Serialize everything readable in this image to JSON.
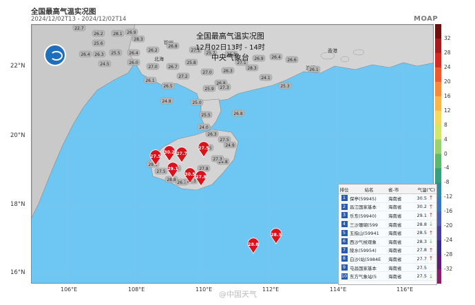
{
  "header": {
    "title": "全国最高气温实况图",
    "time_range": "2024/12/02T13 - 2024/12/02T14",
    "brand": "MOAP"
  },
  "map": {
    "overlay_title": "全国最高气温实况图",
    "overlay_subtitle": "12月02日13时 - 14时",
    "overlay_agency": "中央气象台",
    "lat_labels": [
      "22°N",
      "20°N",
      "18°N",
      "16°N"
    ],
    "lon_labels": [
      "106°E",
      "108°E",
      "110°E",
      "112°E",
      "114°E",
      "116°E"
    ],
    "colors": {
      "sea": "#6ec6f2",
      "land": "#d4d4d4",
      "vietnam": "#c9c9c9",
      "pin": "#d9121b"
    },
    "place_labels": [
      "香港",
      "澳门",
      "钦州",
      "北海"
    ],
    "station_labels": [
      "22.7",
      "26.2",
      "25.6",
      "28.1",
      "26.9",
      "28.3",
      "26.4",
      "26.3",
      "25.5",
      "26.4",
      "26.2",
      "26.8",
      "27.1",
      "25.7",
      "26.3",
      "24.5",
      "26.0",
      "27.0",
      "26.7",
      "25.8",
      "27.2",
      "26.1",
      "26.5",
      "27.0",
      "26.3",
      "26.8",
      "25.9",
      "25.0",
      "27.1",
      "26.9",
      "26.4",
      "26.6",
      "26.1",
      "25.3",
      "24.8",
      "27.3",
      "25.5",
      "24.0",
      "24.9",
      "24.5",
      "26.7",
      "24.3",
      "28.3",
      "28.8",
      "27.5",
      "29.1",
      "24.8",
      "27.8",
      "27.3",
      "27.5",
      "26.3",
      "28.3",
      "24.1",
      "26.8"
    ],
    "pins": [
      "27.5",
      "30.2",
      "27.7",
      "27.5",
      "29.1",
      "30.5",
      "27.8",
      "28.8",
      "28.3"
    ]
  },
  "colorbar": {
    "labels": [
      "32",
      "28",
      "24",
      "20",
      "16",
      "12",
      "8",
      "4",
      "0",
      "-4",
      "-8",
      "-12",
      "-16",
      "-20",
      "-24",
      "-28",
      "-32"
    ],
    "colors": [
      "#6e0f12",
      "#a51c1f",
      "#d42c25",
      "#ec5a2e",
      "#f58c3b",
      "#f9b74b",
      "#f4d861",
      "#cfe86c",
      "#99d26f",
      "#5cb86c",
      "#36a07c",
      "#2c8aa0",
      "#3477bf",
      "#4a5cb8",
      "#4a3b9e",
      "#3a2a86",
      "#5e1a78",
      "#8a1b6e"
    ]
  },
  "legend": {
    "headers": [
      "排位",
      "站名",
      "省-市",
      "气温(℃)"
    ],
    "rows": [
      {
        "rank": "1",
        "station": "保亭(59945)",
        "province": "海南省",
        "temp": "30.5",
        "arrow": "↑"
      },
      {
        "rank": "2",
        "station": "昌江国家基本",
        "province": "海南省",
        "temp": "30.2",
        "arrow": "↑"
      },
      {
        "rank": "3",
        "station": "乐东(59940)",
        "province": "海南省",
        "temp": "29.1",
        "arrow": "↑"
      },
      {
        "rank": "4",
        "station": "三沙珊瑚(599",
        "province": "海南省",
        "temp": "28.8",
        "arrow": "↓"
      },
      {
        "rank": "5",
        "station": "五指山(59941",
        "province": "海南省",
        "temp": "28.5",
        "arrow": "↑"
      },
      {
        "rank": "6",
        "station": "西沙气候观象",
        "province": "海南省",
        "temp": "28.3",
        "arrow": "↓"
      },
      {
        "rank": "7",
        "station": "陵水(59954)",
        "province": "海南省",
        "temp": "27.8",
        "arrow": "↑"
      },
      {
        "rank": "8",
        "station": "白沙(站(5984E",
        "province": "海南省",
        "temp": "27.7",
        "arrow": "↑"
      },
      {
        "rank": "9",
        "station": "屯昌国家基本",
        "province": "海南省",
        "temp": "27.5",
        "arrow": ""
      },
      {
        "rank": "10",
        "station": "东方气象站(5",
        "province": "海南省",
        "temp": "27.5",
        "arrow": "↓"
      }
    ]
  },
  "watermark": "@中国天气"
}
